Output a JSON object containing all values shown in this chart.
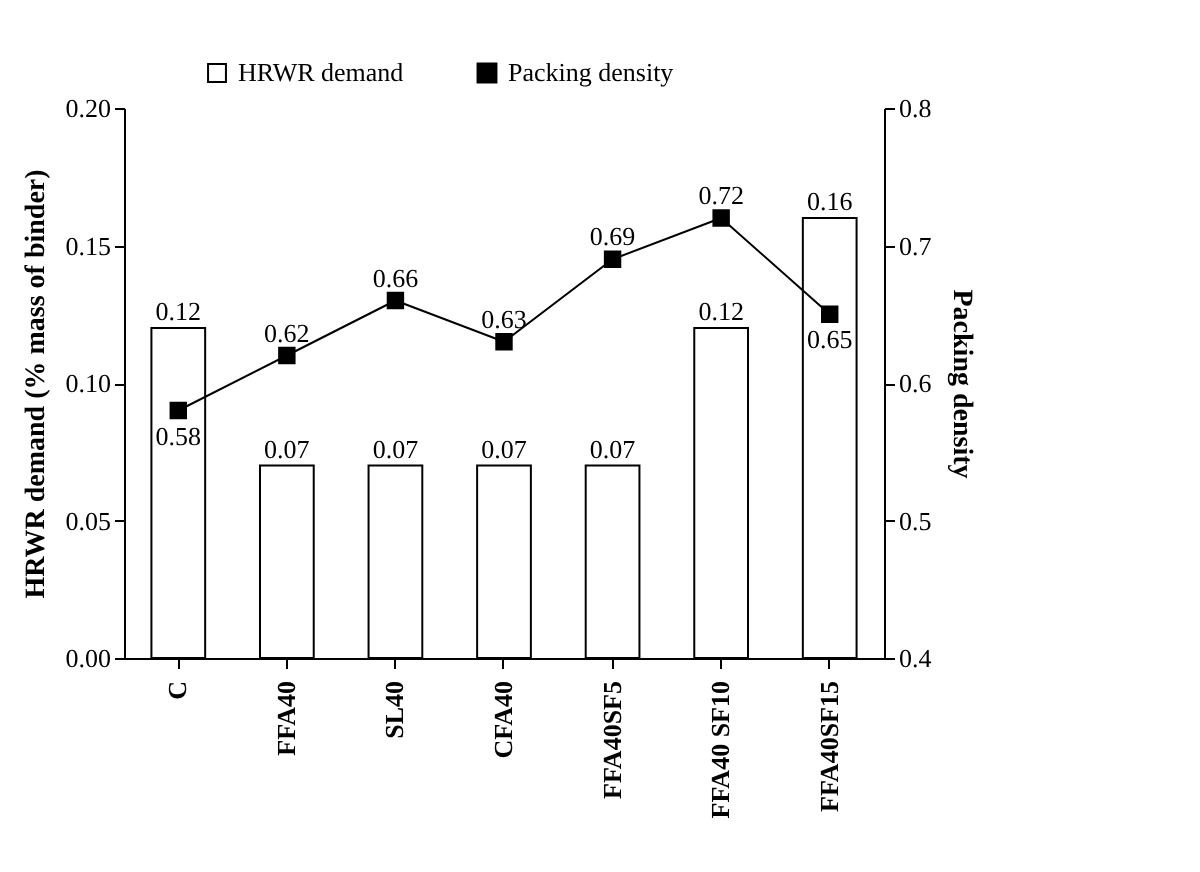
{
  "chart_data": {
    "type": "bar",
    "categories": [
      "C",
      "FFA40",
      "SL40",
      "CFA40",
      "FFA40SF5",
      "FFA40 SF10",
      "FFA40SF15"
    ],
    "ylabel": "HRWR demand (% mass of binder)",
    "y2label": "Packing density",
    "series": [
      {
        "name": "HRWR demand",
        "color": "#ffffff",
        "values": [
          0.12,
          0.07,
          0.07,
          0.07,
          0.07,
          0.12,
          0.16
        ]
      },
      {
        "name": "Packing density",
        "type": "line",
        "axis": "y2",
        "color": "#000000",
        "marker": "square",
        "values": [
          0.58,
          0.62,
          0.66,
          0.63,
          0.69,
          0.72,
          0.65
        ]
      }
    ],
    "ylim": [
      0,
      0.2
    ],
    "yticks": [
      {
        "value": 0,
        "label": "0.00"
      },
      {
        "value": 0.05,
        "label": "0.05"
      },
      {
        "value": 0.1,
        "label": "0.10"
      },
      {
        "value": 0.15,
        "label": "0.15"
      },
      {
        "value": 0.2,
        "label": "0.20"
      }
    ],
    "y2lim": [
      0.4,
      0.8
    ],
    "y2ticks": [
      0.4,
      0.5,
      0.6,
      0.7,
      0.8
    ],
    "data_labels": true,
    "legend": "top",
    "grid": false
  }
}
